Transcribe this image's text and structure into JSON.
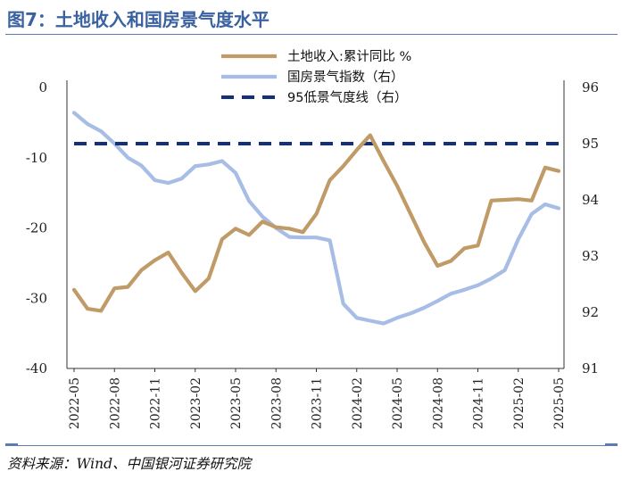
{
  "figure": {
    "title": "图7：土地收入和国房景气度水平",
    "source": "资料来源：Wind、中国银河证券研究院"
  },
  "colors": {
    "title": "#3a62a0",
    "land": "#c09a67",
    "index": "#a8bde6",
    "threshold": "#14307a"
  },
  "chart_data": {
    "type": "line",
    "categories": [
      "2022-05",
      "2022-06",
      "2022-07",
      "2022-08",
      "2022-09",
      "2022-10",
      "2022-11",
      "2022-12",
      "2023-01",
      "2023-02",
      "2023-03",
      "2023-04",
      "2023-05",
      "2023-06",
      "2023-07",
      "2023-08",
      "2023-09",
      "2023-10",
      "2023-11",
      "2023-12",
      "2024-01",
      "2024-02",
      "2024-03",
      "2024-04",
      "2024-05",
      "2024-06",
      "2024-07",
      "2024-08",
      "2024-09",
      "2024-10",
      "2024-11",
      "2024-12",
      "2025-01",
      "2025-02",
      "2025-03",
      "2025-04",
      "2025-05"
    ],
    "x_tick_labels": [
      "2022-05",
      "2022-08",
      "2022-11",
      "2023-02",
      "2023-05",
      "2023-08",
      "2023-11",
      "2024-02",
      "2024-05",
      "2024-08",
      "2024-11",
      "2025-02",
      "2025-05"
    ],
    "left_axis": {
      "min": -40,
      "max": 0,
      "ticks": [
        "0",
        "-10",
        "-20",
        "-30",
        "-40"
      ]
    },
    "right_axis": {
      "min": 91,
      "max": 96,
      "ticks": [
        "96",
        "95",
        "94",
        "93",
        "92",
        "91"
      ]
    },
    "series": [
      {
        "name": "土地收入:累计同比 %",
        "axis": "left",
        "style": "solid",
        "values": [
          -28.8,
          -31.5,
          -31.8,
          -28.6,
          -28.4,
          -26.0,
          -24.6,
          -23.5,
          -26.4,
          -29.0,
          -27.2,
          -21.6,
          -20.1,
          -21.0,
          -19.1,
          -19.9,
          -20.1,
          -20.6,
          -18.0,
          -13.2,
          -11.2,
          -8.9,
          -6.8,
          -10.5,
          -14.0,
          -18.0,
          -22.0,
          -25.4,
          -24.7,
          -22.9,
          -22.5,
          -16.1,
          -16.0,
          -15.9,
          -16.1,
          -11.4,
          -11.9
        ]
      },
      {
        "name": "国房景气指数（右）",
        "axis": "right",
        "style": "solid",
        "values": [
          95.55,
          95.35,
          95.22,
          95.0,
          94.75,
          94.61,
          94.35,
          94.3,
          94.38,
          94.6,
          94.63,
          94.69,
          94.48,
          93.98,
          93.7,
          93.5,
          93.34,
          93.33,
          93.33,
          93.28,
          92.15,
          91.9,
          91.85,
          91.8,
          91.9,
          91.98,
          92.08,
          92.2,
          92.33,
          92.4,
          92.48,
          92.6,
          92.75,
          93.3,
          93.75,
          93.92,
          93.85
        ]
      },
      {
        "name": "95低景气度线（右）",
        "axis": "right",
        "style": "dashed",
        "values": [
          95,
          95,
          95,
          95,
          95,
          95,
          95,
          95,
          95,
          95,
          95,
          95,
          95,
          95,
          95,
          95,
          95,
          95,
          95,
          95,
          95,
          95,
          95,
          95,
          95,
          95,
          95,
          95,
          95,
          95,
          95,
          95,
          95,
          95,
          95,
          95,
          95
        ]
      }
    ]
  }
}
